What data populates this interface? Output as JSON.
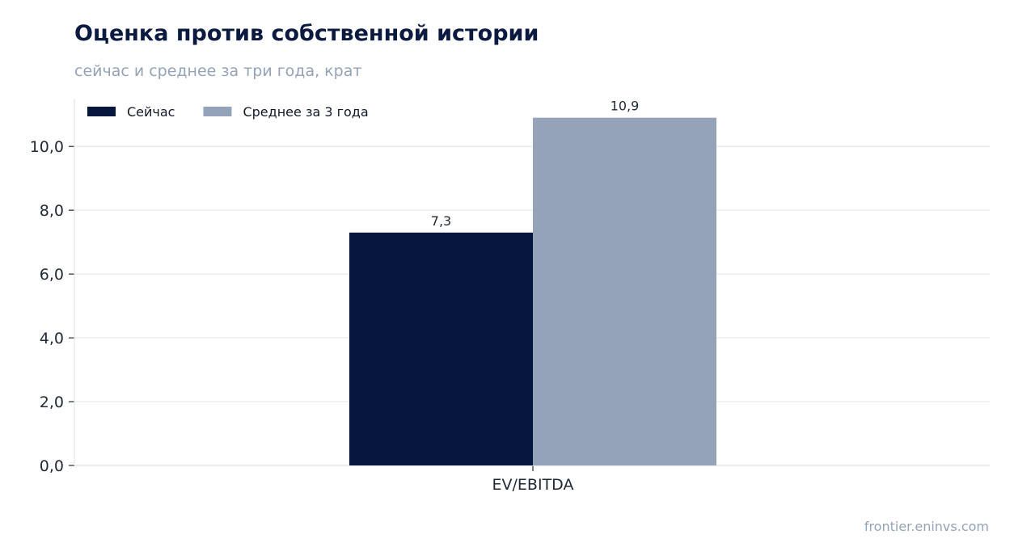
{
  "header": {
    "title": "Оценка против собственной истории",
    "subtitle": "сейчас и среднее за три года, крат"
  },
  "footer": {
    "source": "frontier.eninvs.com"
  },
  "chart_data": {
    "type": "bar",
    "categories": [
      "EV/EBITDA"
    ],
    "series": [
      {
        "name": "Сейчас",
        "values": [
          7.3
        ],
        "labels": [
          "7,3"
        ],
        "color": "#06163f"
      },
      {
        "name": "Среднее за 3 года",
        "values": [
          10.9
        ],
        "labels": [
          "10,9"
        ],
        "color": "#94a3b8"
      }
    ],
    "ylim": [
      0,
      11.5
    ],
    "yticks": [
      0,
      2,
      4,
      6,
      8,
      10
    ],
    "ytick_labels": [
      "0,0",
      "2,0",
      "4,0",
      "6,0",
      "8,0",
      "10,0"
    ],
    "grid": true,
    "legend": "top-left",
    "xlabel": "",
    "ylabel": ""
  }
}
